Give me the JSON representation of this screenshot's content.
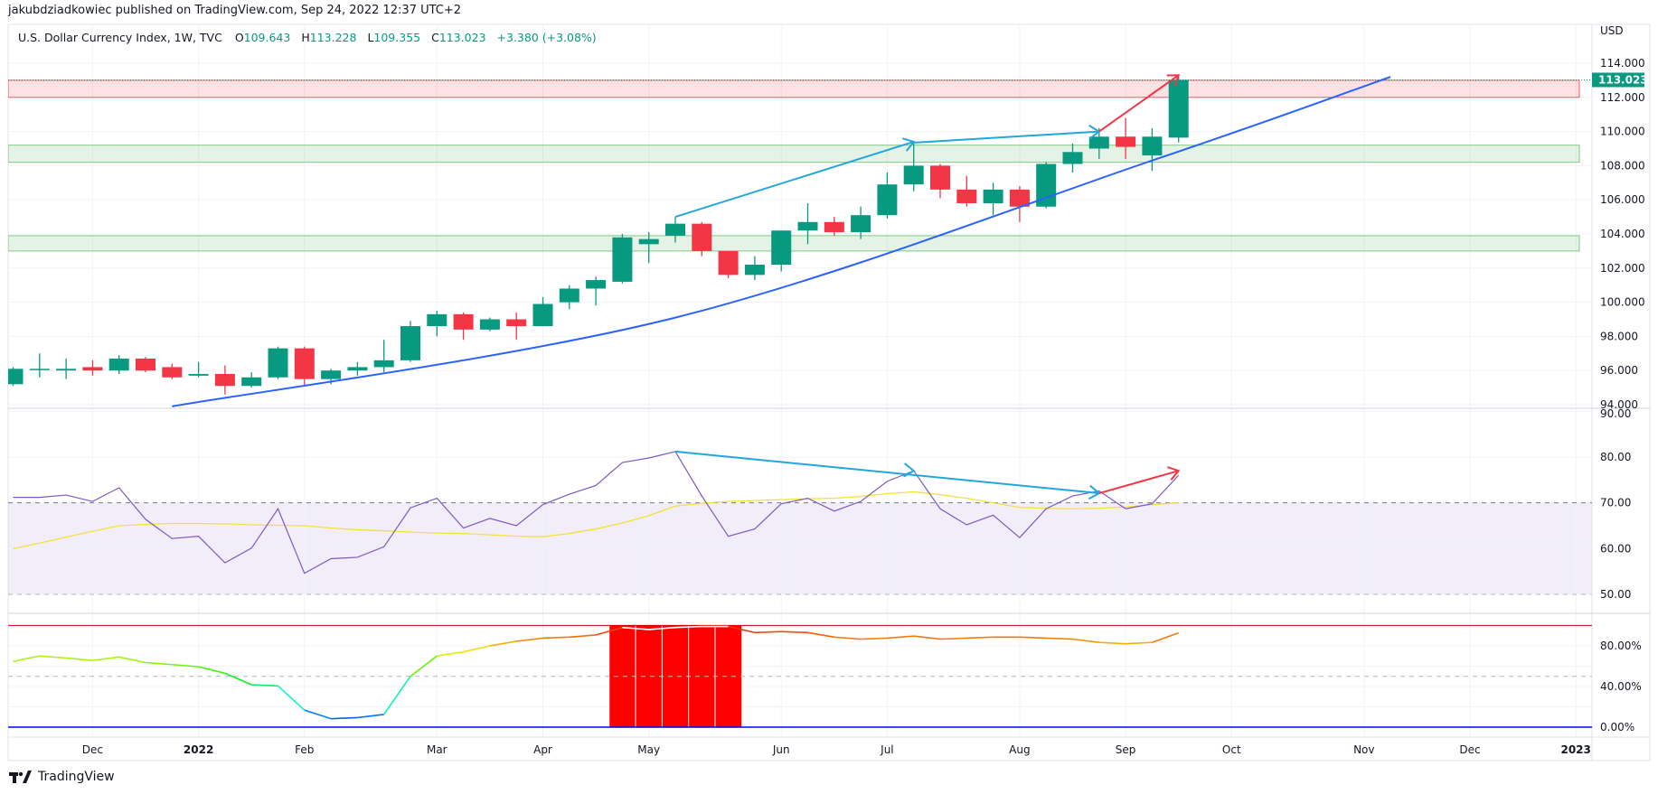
{
  "header": {
    "publisher_line": "jakubdziadkowiec published on TradingView.com, Sep 24, 2022 12:37 UTC+2"
  },
  "legend": {
    "symbol": "U.S. Dollar Currency Index, 1W, TVC",
    "open_label": "O",
    "open": "109.643",
    "high_label": "H",
    "high": "113.228",
    "low_label": "L",
    "low": "109.355",
    "close_label": "C",
    "close": "113.023",
    "change": "+3.380 (+3.08%)"
  },
  "footer": {
    "brand": "TradingView",
    "logo_icon": "tradingview-logo-icon"
  },
  "colors": {
    "up": "#089981",
    "down": "#f23645",
    "trendline": "#2962ff",
    "arrow_blue": "#22a7dd",
    "arrow_red": "#f23645",
    "rsi": "#7e57c2",
    "rsi_ma": "#f2e13b",
    "zone_red": "#f23645",
    "zone_green": "#66bb6a"
  },
  "chart_data": {
    "type": "candlestick",
    "title": "U.S. Dollar Currency Index, 1W, TVC",
    "grid": true,
    "price_axis": {
      "unit": "USD",
      "range": [
        94,
        114
      ],
      "ticks": [
        "114.000",
        "112.000",
        "110.000",
        "108.000",
        "106.000",
        "104.000",
        "102.000",
        "100.000",
        "98.000",
        "96.000",
        "94.000"
      ],
      "last_price_label": "113.023"
    },
    "time_axis": {
      "labels": [
        {
          "label": "Dec",
          "date": "2021-12-06"
        },
        {
          "label": "2022",
          "date": "2022-01-03"
        },
        {
          "label": "Feb",
          "date": "2022-01-31"
        },
        {
          "label": "Mar",
          "date": "2022-03-07"
        },
        {
          "label": "Apr",
          "date": "2022-04-04"
        },
        {
          "label": "May",
          "date": "2022-05-02"
        },
        {
          "label": "Jun",
          "date": "2022-06-06"
        },
        {
          "label": "Jul",
          "date": "2022-07-04"
        },
        {
          "label": "Aug",
          "date": "2022-08-08"
        },
        {
          "label": "Sep",
          "date": "2022-09-05"
        },
        {
          "label": "Oct",
          "date": "2022-10-03"
        },
        {
          "label": "Nov",
          "date": "2022-11-07"
        },
        {
          "label": "Dec",
          "date": "2022-12-05"
        },
        {
          "label": "2023",
          "date": "2023-01-02"
        }
      ]
    },
    "candle_fields": [
      "date",
      "open",
      "high",
      "low",
      "close"
    ],
    "candles": [
      [
        "2021-11-15",
        95.2,
        96.2,
        95.1,
        96.1
      ],
      [
        "2021-11-22",
        96.1,
        97.0,
        95.6,
        96.1
      ],
      [
        "2021-11-29",
        96.0,
        96.7,
        95.5,
        96.1
      ],
      [
        "2021-12-06",
        96.2,
        96.6,
        95.7,
        96.0
      ],
      [
        "2021-12-13",
        96.0,
        96.9,
        95.8,
        96.7
      ],
      [
        "2021-12-20",
        96.7,
        96.8,
        95.9,
        96.0
      ],
      [
        "2021-12-27",
        96.2,
        96.4,
        95.5,
        95.6
      ],
      [
        "2022-01-03",
        95.7,
        96.5,
        95.6,
        95.8
      ],
      [
        "2022-01-10",
        95.8,
        96.3,
        94.6,
        95.1
      ],
      [
        "2022-01-17",
        95.1,
        95.9,
        95.0,
        95.6
      ],
      [
        "2022-01-24",
        95.6,
        97.4,
        95.5,
        97.3
      ],
      [
        "2022-01-31",
        97.3,
        97.4,
        95.1,
        95.5
      ],
      [
        "2022-02-07",
        95.5,
        96.1,
        95.2,
        96.0
      ],
      [
        "2022-02-14",
        96.0,
        96.5,
        95.7,
        96.2
      ],
      [
        "2022-02-21",
        96.2,
        97.8,
        95.9,
        96.6
      ],
      [
        "2022-02-28",
        96.6,
        98.9,
        96.5,
        98.6
      ],
      [
        "2022-03-07",
        98.6,
        99.5,
        98.0,
        99.3
      ],
      [
        "2022-03-14",
        99.3,
        99.4,
        97.8,
        98.4
      ],
      [
        "2022-03-21",
        98.4,
        99.1,
        98.3,
        99.0
      ],
      [
        "2022-03-28",
        99.0,
        99.4,
        97.8,
        98.6
      ],
      [
        "2022-04-04",
        98.6,
        100.3,
        98.6,
        99.9
      ],
      [
        "2022-04-11",
        100.0,
        101.0,
        99.6,
        100.8
      ],
      [
        "2022-04-18",
        100.8,
        101.5,
        99.8,
        101.3
      ],
      [
        "2022-04-25",
        101.2,
        104.0,
        101.1,
        103.8
      ],
      [
        "2022-05-02",
        103.4,
        104.1,
        102.3,
        103.7
      ],
      [
        "2022-05-09",
        103.9,
        105.0,
        103.5,
        104.6
      ],
      [
        "2022-05-16",
        104.6,
        104.7,
        102.7,
        103.0
      ],
      [
        "2022-05-23",
        103.0,
        103.0,
        101.4,
        101.6
      ],
      [
        "2022-05-30",
        101.6,
        102.7,
        101.3,
        102.2
      ],
      [
        "2022-06-06",
        102.2,
        104.2,
        101.8,
        104.2
      ],
      [
        "2022-06-13",
        104.2,
        105.8,
        103.4,
        104.7
      ],
      [
        "2022-06-20",
        104.7,
        105.0,
        103.9,
        104.1
      ],
      [
        "2022-06-27",
        104.1,
        105.6,
        103.7,
        105.1
      ],
      [
        "2022-07-04",
        105.1,
        107.6,
        104.9,
        106.9
      ],
      [
        "2022-07-11",
        106.9,
        109.3,
        106.5,
        108.0
      ],
      [
        "2022-07-18",
        108.0,
        108.1,
        106.1,
        106.6
      ],
      [
        "2022-07-25",
        106.6,
        107.4,
        105.6,
        105.8
      ],
      [
        "2022-08-01",
        105.8,
        107.0,
        105.1,
        106.6
      ],
      [
        "2022-08-08",
        106.6,
        106.8,
        104.7,
        105.6
      ],
      [
        "2022-08-15",
        105.6,
        108.2,
        105.5,
        108.1
      ],
      [
        "2022-08-22",
        108.1,
        109.3,
        107.6,
        108.8
      ],
      [
        "2022-08-29",
        109.0,
        110.2,
        108.4,
        109.7
      ],
      [
        "2022-09-05",
        109.7,
        110.8,
        108.4,
        109.1
      ],
      [
        "2022-09-12",
        108.6,
        110.2,
        107.7,
        109.7
      ],
      [
        "2022-09-19",
        109.643,
        113.228,
        109.355,
        113.023
      ]
    ],
    "zones": [
      {
        "kind": "resistance",
        "color": "red",
        "from": 112.0,
        "to": 113.0
      },
      {
        "kind": "support",
        "color": "green",
        "from": 108.2,
        "to": 109.2
      },
      {
        "kind": "support",
        "color": "green",
        "from": 103.0,
        "to": 103.9
      }
    ],
    "trendline": [
      [
        "2021-12-27",
        93.9
      ],
      [
        "2022-05-09",
        99.1
      ],
      [
        "2022-09-12",
        108.3
      ],
      [
        "2022-11-14",
        113.2
      ]
    ],
    "price_arrows": [
      {
        "color": "blue",
        "from": [
          "2022-05-09",
          105.0
        ],
        "to": [
          "2022-07-11",
          109.4
        ]
      },
      {
        "color": "blue",
        "from": [
          "2022-07-11",
          109.35
        ],
        "to": [
          "2022-08-29",
          110.0
        ]
      },
      {
        "color": "red",
        "from": [
          "2022-08-29",
          110.0
        ],
        "to": [
          "2022-09-19",
          113.3
        ]
      }
    ],
    "rsi": {
      "ticks": [
        "90.00",
        "80.00",
        "70.00",
        "60.00",
        "50.00"
      ],
      "range": [
        45,
        90
      ],
      "band": [
        50,
        70
      ],
      "values": [
        71.2,
        71.2,
        71.7,
        70.3,
        73.3,
        66.4,
        62.2,
        62.7,
        56.9,
        60.1,
        68.7,
        54.6,
        57.8,
        58.1,
        60.4,
        68.9,
        71.0,
        64.5,
        66.6,
        65.0,
        69.6,
        71.9,
        73.8,
        78.8,
        79.8,
        81.2,
        71.5,
        62.7,
        64.3,
        69.8,
        71.0,
        68.2,
        70.3,
        74.7,
        77.0,
        68.7,
        65.2,
        67.3,
        62.4,
        68.7,
        71.5,
        72.6,
        68.7,
        69.8,
        76.0
      ],
      "ma_values": [
        60.0,
        61.2,
        62.5,
        63.8,
        65.0,
        65.3,
        65.5,
        65.5,
        65.4,
        65.2,
        65.1,
        65.0,
        64.5,
        64.1,
        63.9,
        63.6,
        63.4,
        63.3,
        63.0,
        62.7,
        62.6,
        63.3,
        64.3,
        65.6,
        67.2,
        69.3,
        69.9,
        70.3,
        70.5,
        70.7,
        70.9,
        71.0,
        71.4,
        72.0,
        72.4,
        71.8,
        71.0,
        70.0,
        69.0,
        68.8,
        68.7,
        68.8,
        69.1,
        69.6,
        70.0
      ],
      "arrows": [
        {
          "color": "blue",
          "from": [
            "2022-05-09",
            81.2
          ],
          "to": [
            "2022-08-29",
            72.1
          ],
          "mid_marker": [
            "2022-07-11",
            77.0
          ]
        },
        {
          "color": "red",
          "from": [
            "2022-08-29",
            72.1
          ],
          "to": [
            "2022-09-19",
            77.0
          ]
        }
      ]
    },
    "oscillator": {
      "ticks": [
        "80.00%",
        "40.00%",
        "0.00%"
      ],
      "range": [
        0,
        100
      ],
      "upper_level": 100,
      "mid_level": 50,
      "lower_level": 0,
      "highlight_level": 95,
      "values": [
        64.6,
        70.0,
        68.0,
        65.6,
        69.0,
        63.5,
        61.5,
        59.4,
        53.0,
        41.7,
        40.6,
        16.7,
        8.3,
        9.4,
        12.5,
        50.0,
        70.0,
        74.0,
        80.0,
        84.4,
        87.5,
        88.5,
        90.6,
        98.0,
        96.0,
        98.0,
        99.0,
        99.0,
        93.0,
        94.0,
        93.0,
        88.5,
        86.5,
        87.5,
        89.6,
        86.5,
        87.5,
        88.5,
        88.5,
        87.5,
        86.5,
        83.3,
        82.0,
        83.3,
        92.7
      ]
    }
  }
}
